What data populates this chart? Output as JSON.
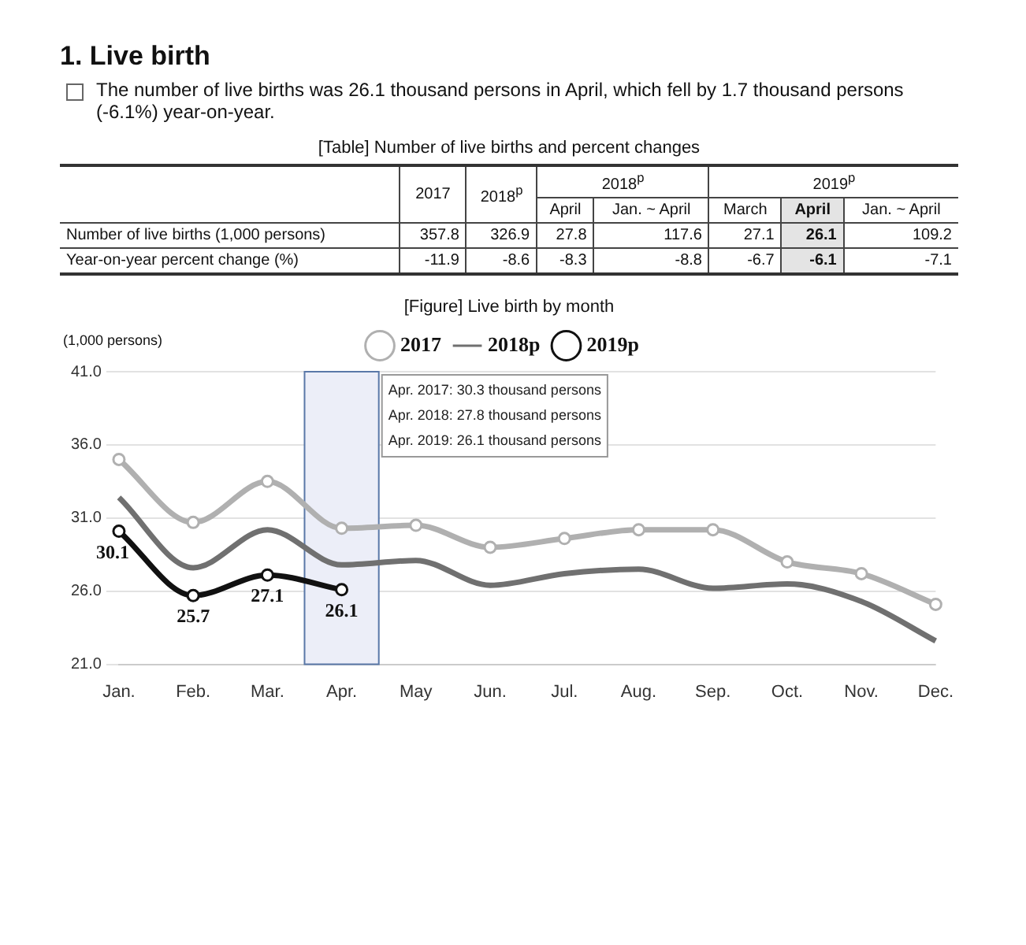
{
  "chart_data": [
    {
      "type": "other",
      "title": "1. Live birth",
      "subtitle": "The number of live births was 26.1 thousand persons in April, which fell by 1.7 thousand persons (-6.1%) year-on-year."
    },
    {
      "type": "other",
      "title": "[Table] Number of live births and percent changes",
      "annotations": [
        "2018$^{p}$",
        "2019$^{p}$"
      ],
      "categories": [
        "2017",
        "2018$^{p}$",
        "April",
        "Jan. ~ April",
        "March",
        "April",
        "Jan. ~ April"
      ],
      "y_categories": [
        "Number of live births (1,000 persons)",
        "Year-on-year percent change (%)"
      ],
      "cell_labels": [
        [
          "357.8",
          "326.9",
          "27.8",
          "117.6",
          "27.1",
          "26.1",
          "109.2"
        ],
        [
          "-11.9",
          "-8.6",
          "-8.3",
          "-8.8",
          "-6.7",
          "-6.1",
          "-7.1"
        ]
      ]
    },
    {
      "type": "line",
      "title": "[Figure] Live birth by month",
      "ylabel": "(1,000 persons)",
      "categories": [
        "Jan.",
        "Feb.",
        "Mar.",
        "Apr.",
        "May",
        "Jun.",
        "Jul.",
        "Aug.",
        "Sep.",
        "Oct.",
        "Nov.",
        "Dec."
      ],
      "series": [
        {
          "name": "2017",
          "color": "#b0b0b0",
          "marker": "circle",
          "values": [
            35.0,
            30.7,
            33.5,
            30.3,
            30.5,
            29.0,
            29.6,
            30.2,
            30.2,
            28.0,
            27.2,
            25.1
          ]
        },
        {
          "name": "2018p",
          "color": "#707070",
          "marker": "none",
          "values": [
            32.4,
            27.6,
            30.2,
            27.8,
            28.1,
            26.4,
            27.2,
            27.5,
            26.2,
            26.5,
            25.3,
            22.6
          ]
        },
        {
          "name": "2019p",
          "color": "#111111",
          "marker": "circle",
          "values": [
            30.1,
            25.7,
            27.1,
            26.1,
            null,
            null,
            null,
            null,
            null,
            null,
            null,
            null
          ],
          "value_labels": [
            "30.1",
            "25.7",
            "27.1",
            "26.1",
            null,
            null,
            null,
            null,
            null,
            null,
            null,
            null
          ]
        }
      ],
      "ylim": [
        21,
        41
      ],
      "yticks": [
        {
          "value": 21,
          "label": "21.0"
        },
        {
          "value": 26,
          "label": "26.0"
        },
        {
          "value": 31,
          "label": "31.0"
        },
        {
          "value": 36,
          "label": "36.0"
        },
        {
          "value": 41,
          "label": "41.0"
        }
      ],
      "grid": "y",
      "legend": "top",
      "line_style": "solid",
      "bands": [
        {
          "axis": "x",
          "from": "Apr.",
          "to": "Apr.",
          "color": "#eceef8"
        }
      ],
      "annotations": [
        "Apr. 2017: 30.3 thousand persons",
        "Apr. 2018: 27.8 thousand persons",
        "Apr. 2019: 26.1 thousand persons"
      ]
    }
  ]
}
